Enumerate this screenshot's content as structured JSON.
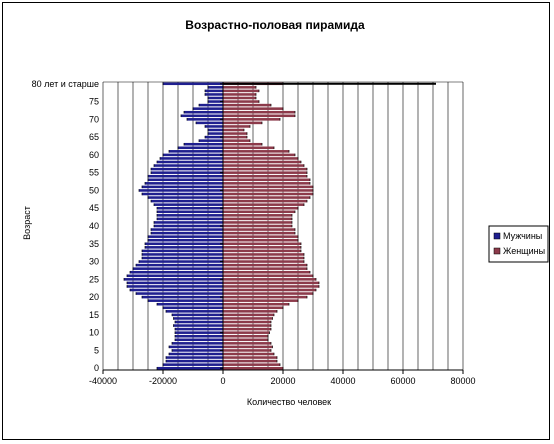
{
  "chart_data": {
    "type": "bar",
    "orientation": "horizontal",
    "title": "Возрастно-половая пирамида",
    "xlabel": "Количество человек",
    "ylabel": "Возраст",
    "xlim": [
      -40000,
      80000
    ],
    "x_ticks": [
      -40000,
      -20000,
      0,
      20000,
      40000,
      60000,
      80000
    ],
    "x_tick_labels": [
      "-40000",
      "-20000",
      "0",
      "20000",
      "40000",
      "60000",
      "80000"
    ],
    "y_tick_labels": [
      "0",
      "5",
      "10",
      "15",
      "20",
      "25",
      "30",
      "35",
      "40",
      "45",
      "50",
      "55",
      "60",
      "65",
      "70",
      "75",
      "80 лет и старше"
    ],
    "grid": "vertical",
    "legend_position": "right",
    "categories": [
      0,
      1,
      2,
      3,
      4,
      5,
      6,
      7,
      8,
      9,
      10,
      11,
      12,
      13,
      14,
      15,
      16,
      17,
      18,
      19,
      20,
      21,
      22,
      23,
      24,
      25,
      26,
      27,
      28,
      29,
      30,
      31,
      32,
      33,
      34,
      35,
      36,
      37,
      38,
      39,
      40,
      41,
      42,
      43,
      44,
      45,
      46,
      47,
      48,
      49,
      50,
      51,
      52,
      53,
      54,
      55,
      56,
      57,
      58,
      59,
      60,
      61,
      62,
      63,
      64,
      65,
      66,
      67,
      68,
      69,
      70,
      71,
      72,
      73,
      74,
      75,
      76,
      77,
      78,
      79,
      80
    ],
    "series": [
      {
        "name": "Мужчины",
        "color": "#1f1f8f",
        "values": [
          -22000,
          -20000,
          -19000,
          -19000,
          -18000,
          -17000,
          -18000,
          -17000,
          -16000,
          -16000,
          -16000,
          -16000,
          -16500,
          -16000,
          -16500,
          -17000,
          -19000,
          -20000,
          -22000,
          -25000,
          -27000,
          -29000,
          -31000,
          -32000,
          -32000,
          -33000,
          -32000,
          -31000,
          -30000,
          -29000,
          -28000,
          -27000,
          -27000,
          -27000,
          -26000,
          -26000,
          -25000,
          -25000,
          -24000,
          -24000,
          -23000,
          -23000,
          -22000,
          -22000,
          -22000,
          -22000,
          -23000,
          -24000,
          -25000,
          -27000,
          -28000,
          -27000,
          -26000,
          -25000,
          -25000,
          -24000,
          -24000,
          -23000,
          -22000,
          -21000,
          -20000,
          -18000,
          -15000,
          -13000,
          -8000,
          -6000,
          -5000,
          -5000,
          -6000,
          -9000,
          -12000,
          -14000,
          -13000,
          -10000,
          -8000,
          -5000,
          -5000,
          -6000,
          -6000,
          -5000,
          -20000
        ]
      },
      {
        "name": "Женщины",
        "color": "#8c3a4a",
        "values": [
          20000,
          19000,
          18000,
          18000,
          17000,
          16000,
          16500,
          16000,
          15000,
          15000,
          15500,
          16000,
          16000,
          16000,
          16500,
          17000,
          18000,
          20000,
          22000,
          25000,
          28000,
          30000,
          31000,
          32000,
          32000,
          31000,
          30000,
          29000,
          28000,
          28000,
          27000,
          27000,
          27000,
          26000,
          26000,
          26000,
          25000,
          25000,
          24000,
          24000,
          23000,
          23000,
          23000,
          23000,
          24000,
          25000,
          27000,
          28000,
          29000,
          30000,
          30000,
          30000,
          29000,
          29000,
          28000,
          28000,
          28000,
          27000,
          26000,
          25000,
          24000,
          22000,
          17000,
          13000,
          9000,
          8000,
          8000,
          7000,
          9000,
          13000,
          19000,
          24000,
          24000,
          20000,
          16000,
          12000,
          11000,
          11000,
          12000,
          11000,
          20000
        ]
      }
    ],
    "overflow_bar": {
      "category": 80,
      "value": 71000,
      "color": "#000000"
    }
  }
}
